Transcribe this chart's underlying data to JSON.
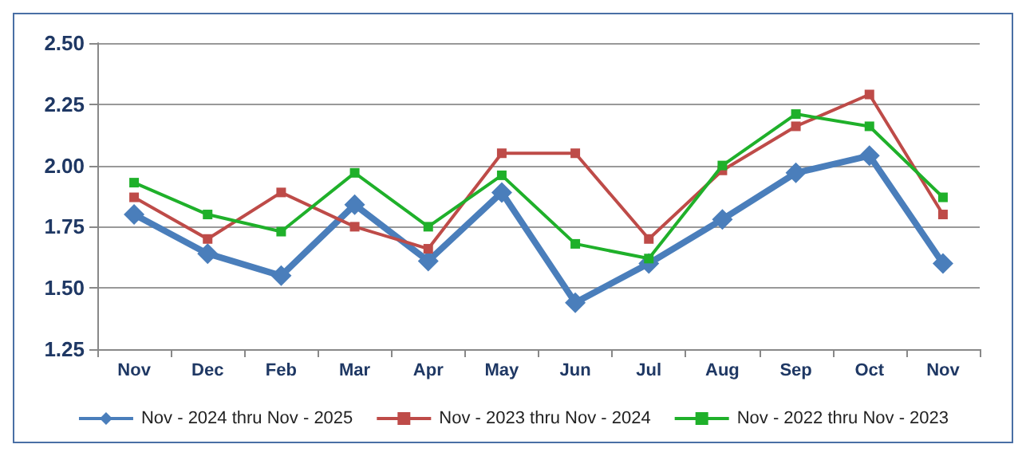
{
  "chart_data": {
    "type": "line",
    "categories": [
      "Nov",
      "Dec",
      "Feb",
      "Mar",
      "Apr",
      "May",
      "Jun",
      "Jul",
      "Aug",
      "Sep",
      "Oct",
      "Nov"
    ],
    "series": [
      {
        "name": "Nov - 2024 thru Nov - 2025",
        "color": "#4a7ebb",
        "marker": "diamond",
        "values": [
          1.8,
          1.64,
          1.55,
          1.84,
          1.61,
          1.89,
          1.44,
          1.6,
          1.78,
          1.97,
          2.04,
          1.6
        ]
      },
      {
        "name": "Nov - 2023 thru Nov - 2024",
        "color": "#be4b48",
        "marker": "square",
        "values": [
          1.87,
          1.7,
          1.89,
          1.75,
          1.66,
          2.05,
          2.05,
          1.7,
          1.98,
          2.16,
          2.29,
          1.8
        ]
      },
      {
        "name": "Nov - 2022 thru Nov - 2023",
        "color": "#1fb02a",
        "marker": "square",
        "values": [
          1.93,
          1.8,
          1.73,
          1.97,
          1.75,
          1.96,
          1.68,
          1.62,
          2.0,
          2.21,
          2.16,
          1.87
        ]
      }
    ],
    "ylim": [
      1.25,
      2.5
    ],
    "yticks": [
      {
        "value": 1.25,
        "label": "1.25"
      },
      {
        "value": 1.5,
        "label": "1.50"
      },
      {
        "value": 1.75,
        "label": "1.75"
      },
      {
        "value": 2,
        "label": "2.00"
      },
      {
        "value": 2.25,
        "label": "2.25"
      },
      {
        "value": 2.5,
        "label": "2.50"
      }
    ],
    "grid": "y",
    "legend": "bottom"
  }
}
